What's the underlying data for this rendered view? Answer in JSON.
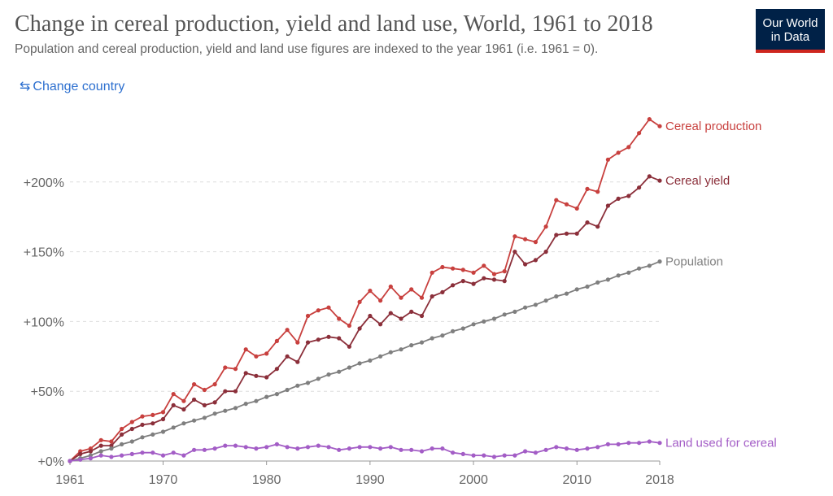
{
  "header": {
    "title": "Change in cereal production, yield and land use, World, 1961 to 2018",
    "subtitle": "Population and cereal production, yield and land use figures are indexed to the year 1961 (i.e. 1961 = 0).",
    "logo_line1": "Our World",
    "logo_line2": "in Data"
  },
  "controls": {
    "change_country_label": "Change country",
    "change_country_icon": "swap-arrows-icon"
  },
  "colors": {
    "cereal_production": "#c8403e",
    "cereal_yield": "#8b2f3a",
    "population": "#7f7f7f",
    "land_used": "#a35dc6",
    "logo_bg": "#002147",
    "logo_accent": "#ce261e",
    "link": "#2c6fcf"
  },
  "chart_data": {
    "type": "line",
    "title": "Change in cereal production, yield and land use, World, 1961 to 2018",
    "subtitle": "Population and cereal production, yield and land use figures are indexed to the year 1961 (i.e. 1961 = 0).",
    "xlabel": "",
    "ylabel": "",
    "x_ticks": [
      "1961",
      "1970",
      "1980",
      "1990",
      "2000",
      "2010",
      "2018"
    ],
    "x_tick_values": [
      1961,
      1970,
      1980,
      1990,
      2000,
      2010,
      2018
    ],
    "y_ticks": [
      "+0%",
      "+50%",
      "+100%",
      "+150%",
      "+200%"
    ],
    "y_tick_values": [
      0,
      50,
      100,
      150,
      200
    ],
    "xlim": [
      1961,
      2018
    ],
    "ylim": [
      0,
      245
    ],
    "grid": "horizontal dashed",
    "legend": "labels at line ends (right)",
    "x": [
      1961,
      1962,
      1963,
      1964,
      1965,
      1966,
      1967,
      1968,
      1969,
      1970,
      1971,
      1972,
      1973,
      1974,
      1975,
      1976,
      1977,
      1978,
      1979,
      1980,
      1981,
      1982,
      1983,
      1984,
      1985,
      1986,
      1987,
      1988,
      1989,
      1990,
      1991,
      1992,
      1993,
      1994,
      1995,
      1996,
      1997,
      1998,
      1999,
      2000,
      2001,
      2002,
      2003,
      2004,
      2005,
      2006,
      2007,
      2008,
      2009,
      2010,
      2011,
      2012,
      2013,
      2014,
      2015,
      2016,
      2017,
      2018
    ],
    "series": [
      {
        "name": "Cereal production",
        "color": "#c8403e",
        "values": [
          0,
          7,
          9,
          15,
          14,
          23,
          28,
          32,
          33,
          35,
          48,
          43,
          55,
          51,
          55,
          67,
          66,
          80,
          75,
          77,
          86,
          94,
          85,
          104,
          108,
          110,
          102,
          97,
          114,
          122,
          115,
          125,
          117,
          123,
          117,
          135,
          139,
          138,
          137,
          135,
          140,
          134,
          136,
          161,
          159,
          157,
          168,
          187,
          184,
          181,
          195,
          193,
          216,
          221,
          225,
          235,
          245,
          240
        ]
      },
      {
        "name": "Cereal yield",
        "color": "#8b2f3a",
        "values": [
          0,
          5,
          7,
          11,
          11,
          19,
          23,
          26,
          27,
          30,
          40,
          37,
          44,
          40,
          42,
          50,
          50,
          63,
          61,
          60,
          66,
          75,
          71,
          85,
          87,
          89,
          88,
          82,
          95,
          104,
          98,
          106,
          102,
          107,
          104,
          118,
          121,
          126,
          129,
          127,
          131,
          130,
          129,
          150,
          141,
          144,
          150,
          162,
          163,
          163,
          171,
          168,
          183,
          188,
          190,
          196,
          204,
          201
        ]
      },
      {
        "name": "Population",
        "color": "#7f7f7f",
        "values": [
          0,
          2,
          4,
          7,
          9,
          12,
          14,
          17,
          19,
          21,
          24,
          27,
          29,
          31,
          34,
          36,
          38,
          41,
          43,
          46,
          48,
          51,
          54,
          56,
          59,
          62,
          64,
          67,
          70,
          72,
          75,
          78,
          80,
          83,
          85,
          88,
          90,
          93,
          95,
          98,
          100,
          102,
          105,
          107,
          110,
          112,
          115,
          118,
          120,
          123,
          125,
          128,
          130,
          133,
          135,
          138,
          140,
          143
        ]
      },
      {
        "name": "Land used for cereal",
        "color": "#a35dc6",
        "values": [
          0,
          1,
          2,
          4,
          3,
          4,
          5,
          6,
          6,
          4,
          6,
          4,
          8,
          8,
          9,
          11,
          11,
          10,
          9,
          10,
          12,
          10,
          9,
          10,
          11,
          10,
          8,
          9,
          10,
          10,
          9,
          10,
          8,
          8,
          7,
          9,
          9,
          6,
          5,
          4,
          4,
          3,
          4,
          4,
          7,
          6,
          8,
          10,
          9,
          8,
          9,
          10,
          12,
          12,
          13,
          13,
          14,
          13
        ]
      }
    ]
  }
}
